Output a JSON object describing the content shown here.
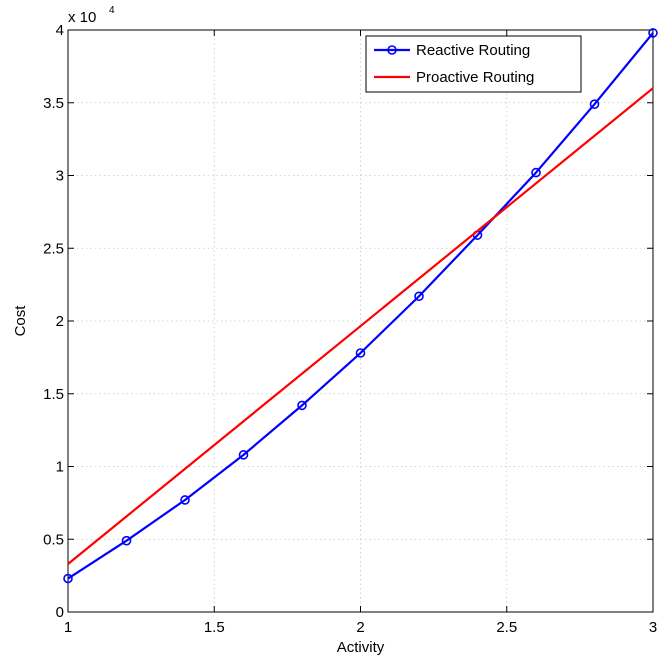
{
  "chart_data": {
    "type": "line",
    "xlabel": "Activity",
    "ylabel": "Cost",
    "y_exponent_base": "x 10",
    "y_exponent_power": "4",
    "xlim": [
      1,
      3
    ],
    "ylim": [
      0,
      4
    ],
    "x_ticks": [
      1,
      1.5,
      2,
      2.5,
      3
    ],
    "x_tick_labels": [
      "1",
      "1.5",
      "2",
      "2.5",
      "3"
    ],
    "y_ticks": [
      0,
      0.5,
      1,
      1.5,
      2,
      2.5,
      3,
      3.5,
      4
    ],
    "y_tick_labels": [
      "0",
      "0.5",
      "1",
      "1.5",
      "2",
      "2.5",
      "3",
      "3.5",
      "4"
    ],
    "grid": true,
    "legend_position": "top-right",
    "series": [
      {
        "name": "Reactive Routing",
        "color": "#0000ff",
        "marker": "circle",
        "x": [
          1,
          1.2,
          1.4,
          1.6,
          1.8,
          2,
          2.2,
          2.4,
          2.6,
          2.8,
          3
        ],
        "y": [
          0.23,
          0.49,
          0.77,
          1.08,
          1.42,
          1.78,
          2.17,
          2.59,
          3.02,
          3.49,
          3.98
        ]
      },
      {
        "name": "Proactive Routing",
        "color": "#ff0000",
        "marker": "none",
        "x": [
          1,
          3
        ],
        "y": [
          0.33,
          3.6
        ]
      }
    ]
  }
}
